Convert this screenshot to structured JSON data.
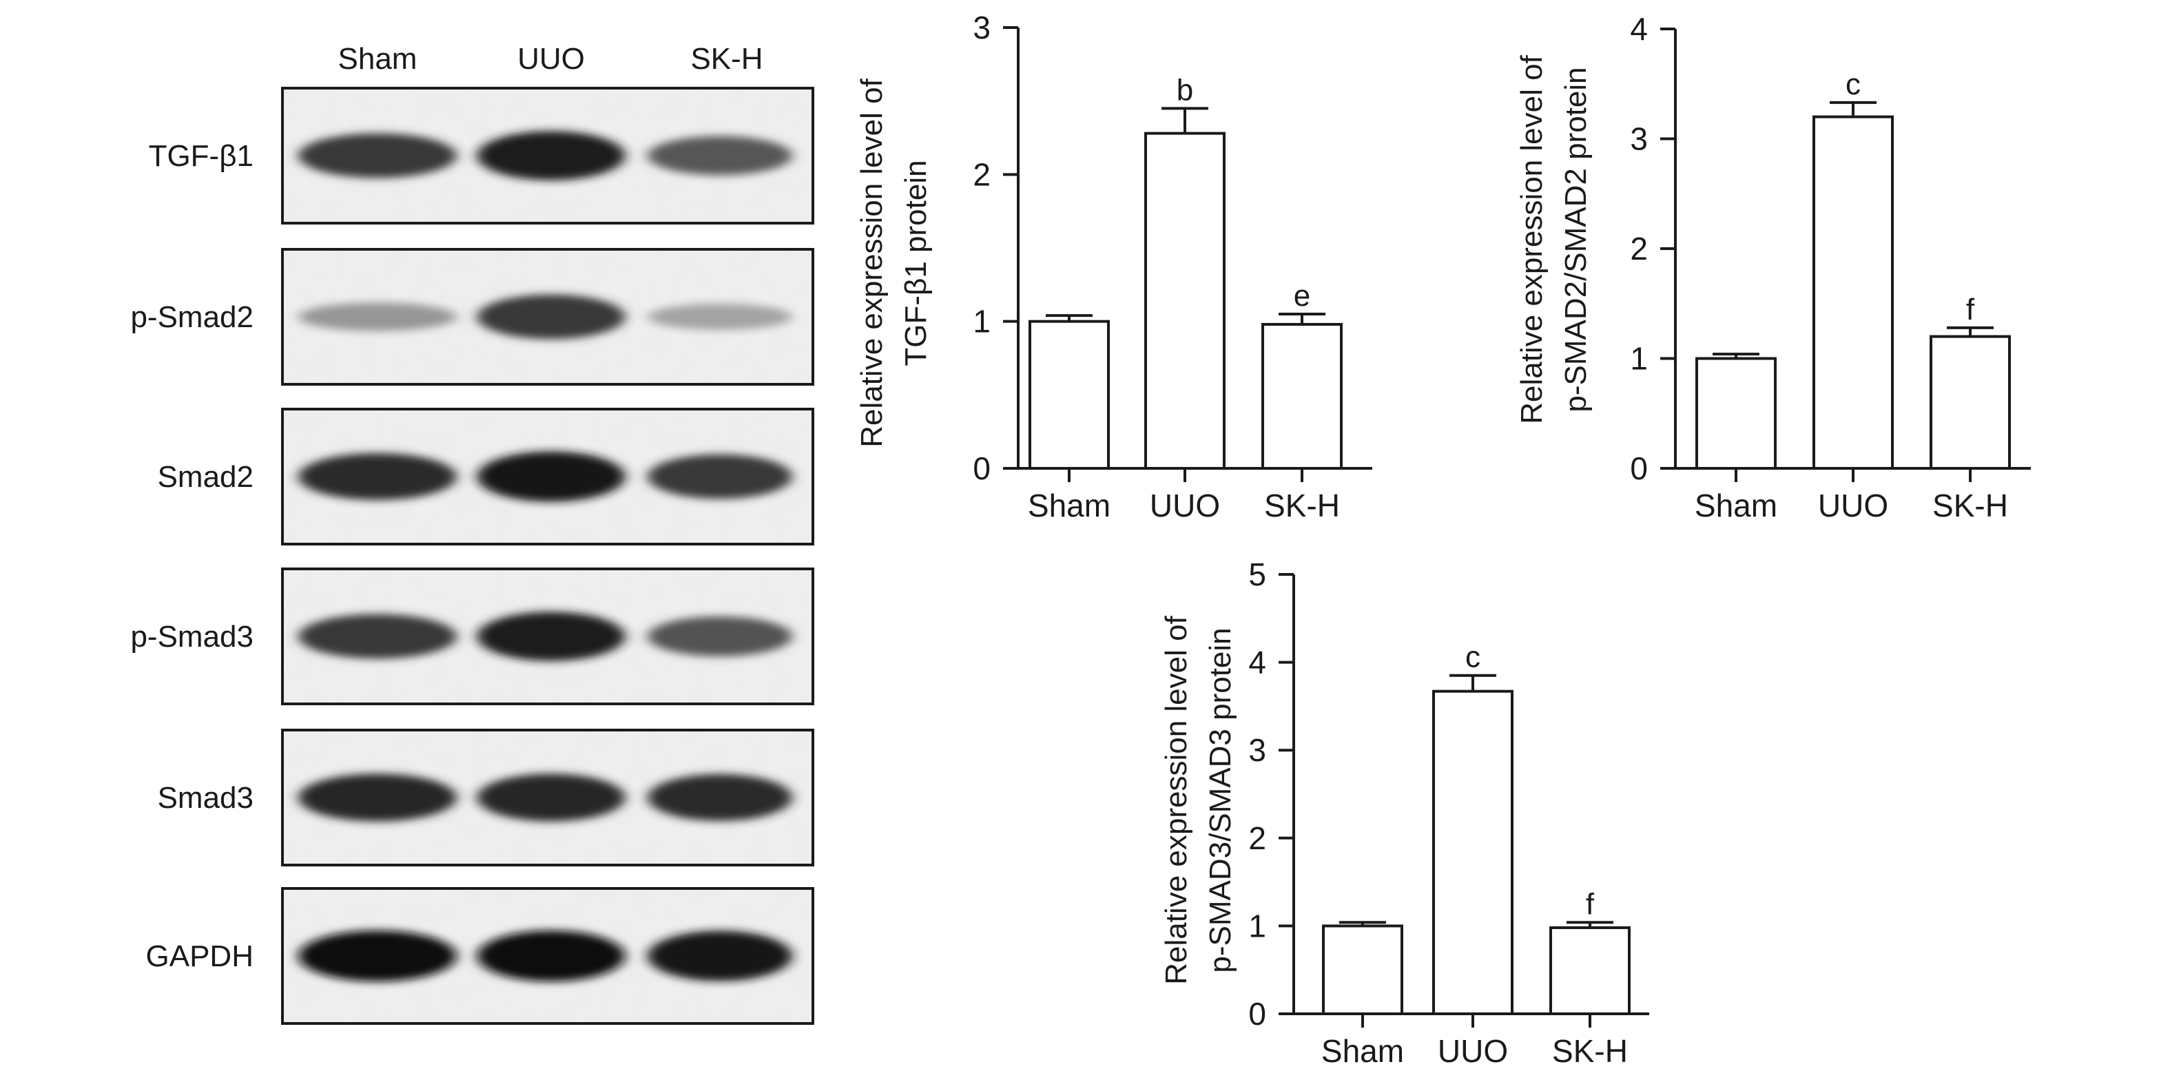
{
  "blot": {
    "lanes": [
      "Sham",
      "UUO",
      "SK-H"
    ],
    "rows": [
      {
        "label": "TGF-β1",
        "intensities": [
          0.8,
          0.92,
          0.66
        ]
      },
      {
        "label": "p-Smad2",
        "intensities": [
          0.38,
          0.8,
          0.32
        ]
      },
      {
        "label": "Smad2",
        "intensities": [
          0.86,
          0.95,
          0.8
        ]
      },
      {
        "label": "p-Smad3",
        "intensities": [
          0.8,
          0.92,
          0.68
        ]
      },
      {
        "label": "Smad3",
        "intensities": [
          0.88,
          0.88,
          0.86
        ]
      },
      {
        "label": "GAPDH",
        "intensities": [
          0.97,
          0.97,
          0.95
        ]
      }
    ]
  },
  "chart_data": [
    {
      "type": "bar",
      "categories": [
        "Sham",
        "UUO",
        "SK-H"
      ],
      "values": [
        1.0,
        2.28,
        0.98
      ],
      "errors": [
        0.04,
        0.17,
        0.07
      ],
      "annotations": [
        "",
        "b",
        "e"
      ],
      "ylabel_lines": [
        "Relative expression level of",
        "TGF-β1 protein"
      ],
      "ylim": [
        0,
        3
      ],
      "yticks": [
        0,
        1,
        2,
        3
      ]
    },
    {
      "type": "bar",
      "categories": [
        "Sham",
        "UUO",
        "SK-H"
      ],
      "values": [
        1.0,
        3.2,
        1.2
      ],
      "errors": [
        0.04,
        0.13,
        0.08
      ],
      "annotations": [
        "",
        "c",
        "f"
      ],
      "ylabel_lines": [
        "Relative expression level of",
        "p-SMAD2/SMAD2 protein"
      ],
      "ylim": [
        0,
        4
      ],
      "yticks": [
        0,
        1,
        2,
        3,
        4
      ]
    },
    {
      "type": "bar",
      "categories": [
        "Sham",
        "UUO",
        "SK-H"
      ],
      "values": [
        1.0,
        3.67,
        0.98
      ],
      "errors": [
        0.04,
        0.18,
        0.06
      ],
      "annotations": [
        "",
        "c",
        "f"
      ],
      "ylabel_lines": [
        "Relative expression level of",
        "p-SMAD3/SMAD3 protein"
      ],
      "ylim": [
        0,
        5
      ],
      "yticks": [
        0,
        1,
        2,
        3,
        4,
        5
      ]
    }
  ]
}
